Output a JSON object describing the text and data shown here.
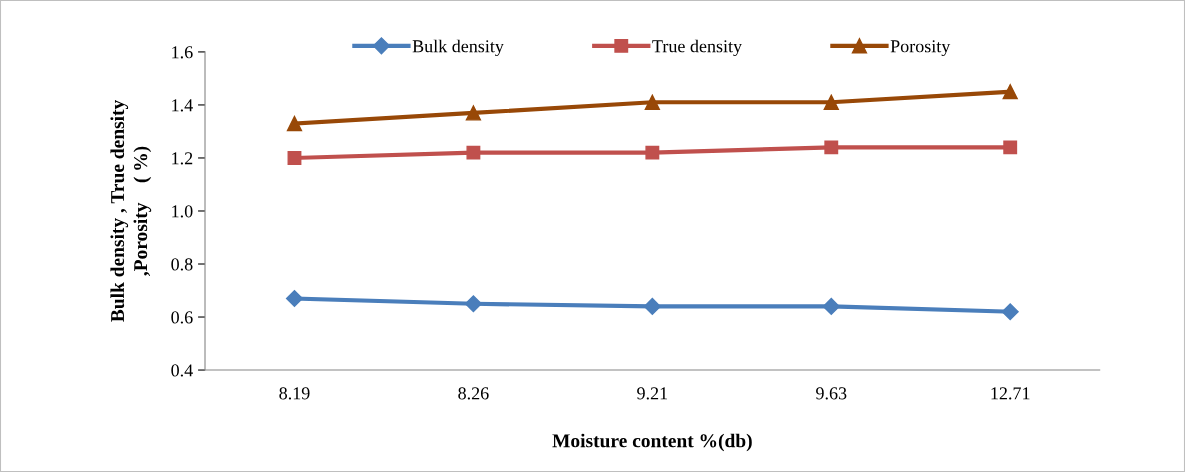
{
  "chart_data": {
    "type": "line",
    "xlabel": "Moisture content %(db)",
    "ylabel": "Bulk density , True density\n,Porosity    ( %)",
    "categories": [
      "8.19",
      "8.26",
      "9.21",
      "9.63",
      "12.71"
    ],
    "series": [
      {
        "name": "Bulk density",
        "color": "#4a7ebb",
        "marker": "diamond",
        "values": [
          0.67,
          0.65,
          0.64,
          0.64,
          0.62
        ]
      },
      {
        "name": "True density",
        "color": "#c0504d",
        "marker": "square",
        "values": [
          1.2,
          1.22,
          1.22,
          1.24,
          1.24
        ]
      },
      {
        "name": "Porosity",
        "color": "#984807",
        "marker": "triangle",
        "values": [
          1.33,
          1.37,
          1.41,
          1.41,
          1.45
        ]
      }
    ],
    "ylim": [
      0.4,
      1.6
    ],
    "yticks": [
      {
        "value": 0.4,
        "label": "0.4"
      },
      {
        "value": 0.6,
        "label": "0.6"
      },
      {
        "value": 0.8,
        "label": "0.8"
      },
      {
        "value": 1.0,
        "label": "1.0"
      },
      {
        "value": 1.2,
        "label": "1.2"
      },
      {
        "value": 1.4,
        "label": "1.4"
      },
      {
        "value": 1.6,
        "label": "1.6"
      }
    ],
    "grid": false,
    "legend": "top",
    "line_style": "solid"
  }
}
